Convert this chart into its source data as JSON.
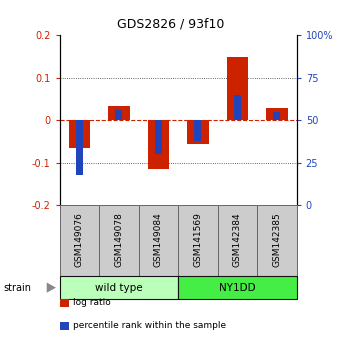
{
  "title": "GDS2826 / 93f10",
  "samples": [
    "GSM149076",
    "GSM149078",
    "GSM149084",
    "GSM141569",
    "GSM142384",
    "GSM142385"
  ],
  "groups": [
    {
      "name": "wild type",
      "indices": [
        0,
        1,
        2
      ],
      "color": "#bbffbb"
    },
    {
      "name": "NY1DD",
      "indices": [
        3,
        4,
        5
      ],
      "color": "#44ee44"
    }
  ],
  "log_ratio": [
    -0.065,
    0.033,
    -0.115,
    -0.055,
    0.15,
    0.028
  ],
  "percentile_rank": [
    0.18,
    0.56,
    0.3,
    0.38,
    0.65,
    0.55
  ],
  "bar_width": 0.55,
  "pr_bar_width": 0.18,
  "ylim": [
    -0.2,
    0.2
  ],
  "yticks_left": [
    -0.2,
    -0.1,
    0.0,
    0.1,
    0.2
  ],
  "yticks_left_labels": [
    "-0.2",
    "-0.1",
    "0",
    "0.1",
    "0.2"
  ],
  "yticks_right": [
    0,
    25,
    50,
    75,
    100
  ],
  "yticks_right_labels": [
    "0",
    "25",
    "50",
    "75",
    "100%"
  ],
  "yticks_right_positions": [
    -0.2,
    -0.1,
    0.0,
    0.1,
    0.2
  ],
  "log_ratio_color": "#cc2200",
  "percentile_color": "#2244bb",
  "zero_line_color": "#cc2200",
  "grid_color": "#333333",
  "strain_label": "strain",
  "legend_items": [
    {
      "label": "log ratio",
      "color": "#cc2200"
    },
    {
      "label": "percentile rank within the sample",
      "color": "#2244bb"
    }
  ]
}
